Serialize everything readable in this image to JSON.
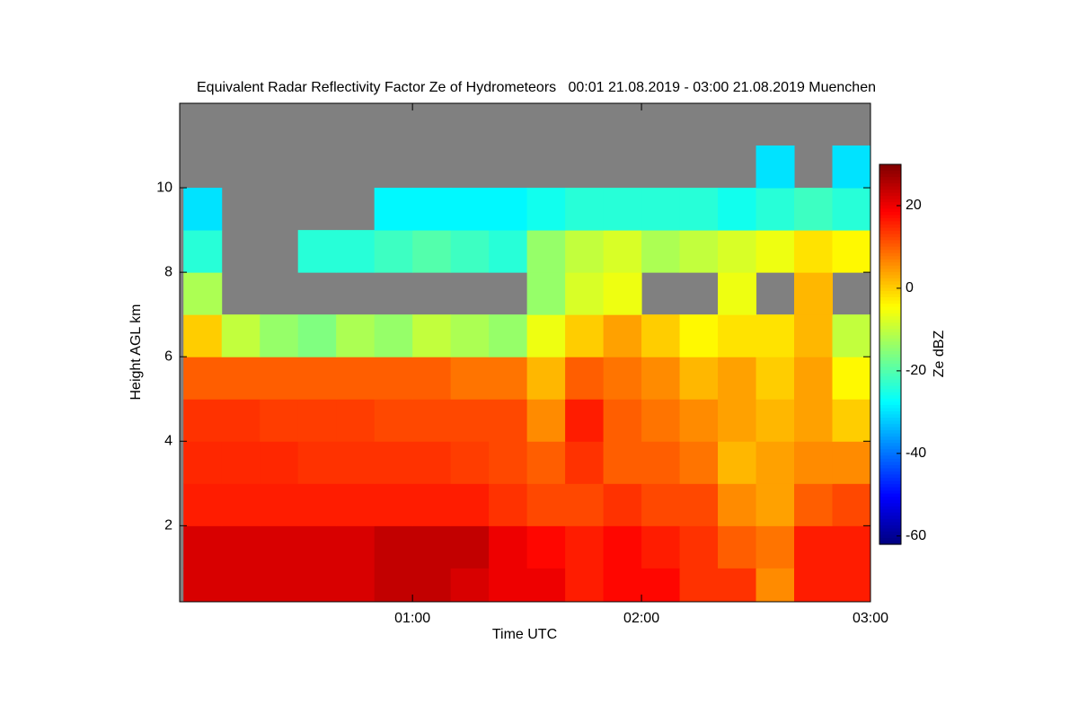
{
  "chart_data": {
    "type": "heatmap",
    "title": "Equivalent Radar Reflectivity Factor Ze of Hydrometeors   00:01 21.08.2019 - 03:00 21.08.2019 Muenchen",
    "x_label": "Time UTC",
    "y_label": "Height AGL km",
    "colorbar_label": "Ze dBZ",
    "colormap": "jet",
    "nodata_color": "#808080",
    "xlim": [
      -1,
      180
    ],
    "xticks": [
      {
        "value": 60,
        "label": "01:00"
      },
      {
        "value": 120,
        "label": "02:00"
      },
      {
        "value": 180,
        "label": "03:00"
      }
    ],
    "ylim": [
      0.2,
      12
    ],
    "yticks": [
      2,
      4,
      6,
      8,
      10
    ],
    "clim": [
      -62,
      30
    ],
    "cticks": [
      -60,
      -40,
      -20,
      0,
      20
    ],
    "xbins": [
      0,
      10,
      20,
      30,
      40,
      50,
      60,
      70,
      80,
      90,
      100,
      110,
      120,
      130,
      140,
      150,
      160,
      170,
      180
    ],
    "ybins": [
      0.2,
      1,
      2,
      3,
      4,
      5,
      6,
      7,
      8,
      9,
      10,
      11,
      12
    ],
    "values": [
      [
        22,
        22,
        22,
        22,
        22,
        24,
        24,
        22,
        20,
        20,
        16,
        18,
        18,
        14,
        14,
        6,
        16,
        16
      ],
      [
        22,
        22,
        22,
        22,
        22,
        24,
        24,
        24,
        20,
        18,
        16,
        18,
        16,
        14,
        10,
        8,
        16,
        16
      ],
      [
        16,
        16,
        16,
        16,
        16,
        16,
        16,
        16,
        14,
        12,
        12,
        14,
        12,
        12,
        6,
        4,
        10,
        12
      ],
      [
        15,
        15,
        15,
        14,
        14,
        14,
        14,
        13,
        12,
        10,
        14,
        10,
        10,
        8,
        2,
        4,
        6,
        6
      ],
      [
        14,
        14,
        13,
        13,
        13,
        12,
        12,
        12,
        12,
        6,
        16,
        10,
        8,
        6,
        4,
        2,
        4,
        0
      ],
      [
        10,
        10,
        10,
        10,
        10,
        10,
        10,
        8,
        8,
        2,
        10,
        8,
        6,
        2,
        4,
        0,
        4,
        -4
      ],
      [
        0,
        -10,
        -14,
        -16,
        -12,
        -14,
        -10,
        -12,
        -14,
        -6,
        0,
        4,
        0,
        -4,
        -2,
        -2,
        2,
        -10
      ],
      [
        -12,
        null,
        null,
        null,
        null,
        null,
        null,
        null,
        null,
        -14,
        -8,
        -6,
        null,
        null,
        -6,
        null,
        2,
        null
      ],
      [
        -24,
        null,
        null,
        -24,
        -24,
        -22,
        -20,
        -22,
        -24,
        -14,
        -10,
        -8,
        -12,
        -10,
        -8,
        -6,
        -2,
        -4
      ],
      [
        -30,
        null,
        null,
        null,
        null,
        -28,
        -28,
        -28,
        -28,
        -26,
        -24,
        -24,
        -24,
        -24,
        -26,
        -24,
        -22,
        -24
      ],
      [
        null,
        null,
        null,
        null,
        null,
        null,
        null,
        null,
        null,
        null,
        null,
        null,
        null,
        null,
        null,
        -30,
        null,
        -30
      ],
      [
        null,
        null,
        null,
        null,
        null,
        null,
        null,
        null,
        null,
        null,
        null,
        null,
        null,
        null,
        null,
        null,
        null,
        null
      ]
    ]
  }
}
